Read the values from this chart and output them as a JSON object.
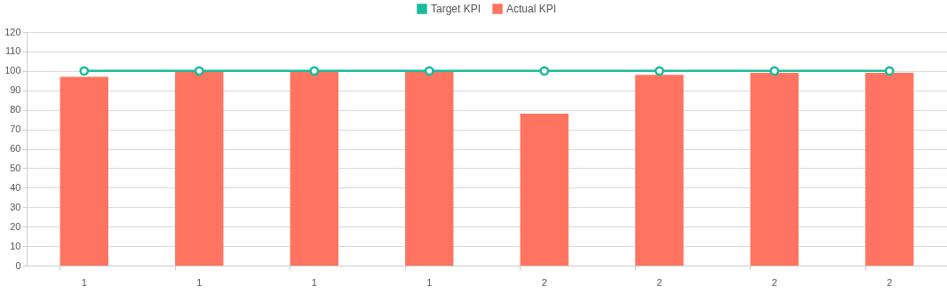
{
  "chart_data": {
    "type": "bar",
    "categories": [
      "1",
      "1",
      "1",
      "1",
      "2",
      "2",
      "2",
      "2"
    ],
    "series": [
      {
        "name": "Target KPI",
        "type": "line",
        "color": "#1abb9c",
        "values": [
          100,
          100,
          100,
          100,
          100,
          100,
          100,
          100
        ]
      },
      {
        "name": "Actual KPI",
        "color": "#ff7461",
        "values": [
          97,
          100,
          100,
          100,
          78,
          98,
          99,
          99
        ]
      }
    ],
    "ylim": [
      0,
      120
    ],
    "yticks": [
      0,
      10,
      20,
      30,
      40,
      50,
      60,
      70,
      80,
      90,
      100,
      110,
      120
    ],
    "grid": "y",
    "legend": "top",
    "marker": "circle"
  }
}
